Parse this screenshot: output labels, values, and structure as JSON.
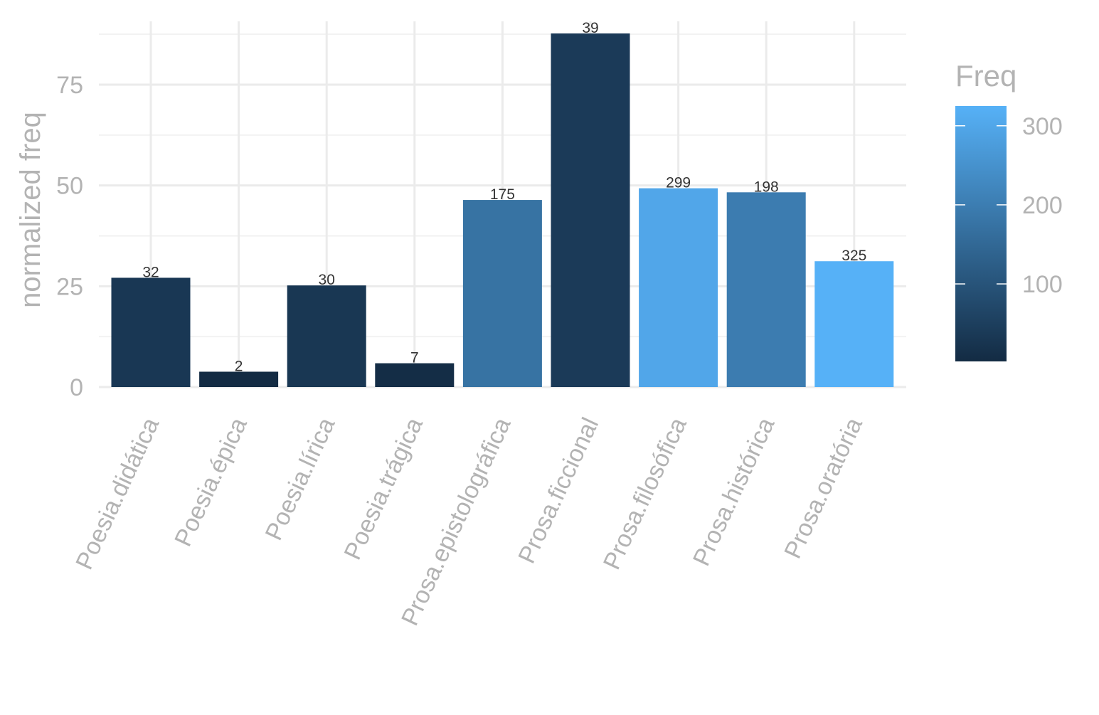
{
  "chart_data": {
    "type": "bar",
    "ylabel": "normalized freq",
    "ylim": [
      0,
      90
    ],
    "y_ticks": [
      0,
      25,
      50,
      75
    ],
    "grid": true,
    "legend_position": "right",
    "categories": [
      "Poesia.didática",
      "Poesia.épica",
      "Poesia.lírica",
      "Poesia.trágica",
      "Prosa.epistolográfica",
      "Prosa.ficcional",
      "Prosa.filosófica",
      "Prosa.histórica",
      "Prosa.oratória"
    ],
    "values": [
      27.1,
      3.8,
      25.2,
      5.9,
      46.4,
      87.7,
      49.3,
      48.3,
      31.2
    ],
    "freq": [
      32,
      2,
      30,
      7,
      175,
      39,
      299,
      198,
      325
    ],
    "data_labels": [
      "32",
      "2",
      "30",
      "7",
      "175",
      "39",
      "299",
      "198",
      "325"
    ],
    "legend": {
      "title": "Freq",
      "range": [
        2,
        325
      ],
      "ticks": [
        100,
        200,
        300
      ],
      "color_low": "#132b43",
      "color_high": "#56b1f7"
    }
  }
}
